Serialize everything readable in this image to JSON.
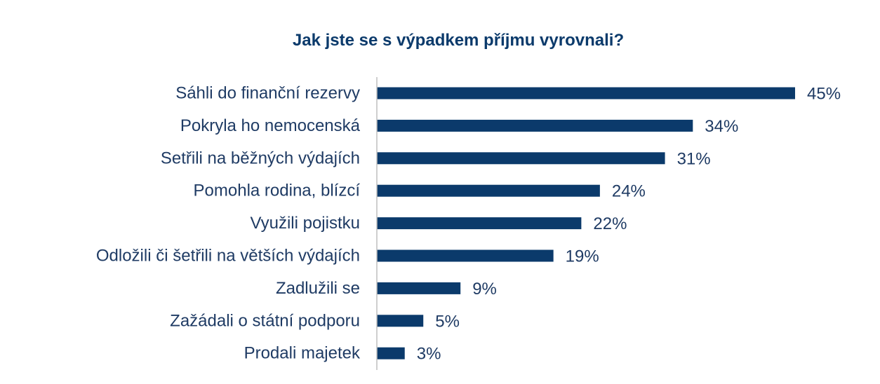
{
  "chart_data": {
    "type": "bar",
    "orientation": "horizontal",
    "title": "Jak jste se s výpadkem příjmu vyrovnali?",
    "categories": [
      "Sáhli do finanční rezervy",
      "Pokryla ho nemocenská",
      "Setřili na běžných výdajích",
      "Pomohla rodina, blízcí",
      "Využili pojistku",
      "Odložili či šetřili na větších výdajích",
      "Zadlužili se",
      "Zažádali o státní podporu",
      "Prodali majetek"
    ],
    "values": [
      45,
      34,
      31,
      24,
      22,
      19,
      9,
      5,
      3
    ],
    "value_labels": [
      "45%",
      "34%",
      "31%",
      "24%",
      "22%",
      "19%",
      "9%",
      "5%",
      "3%"
    ],
    "unit": "%",
    "xlim": [
      0,
      50
    ],
    "grid": false,
    "legend": "none",
    "bar_color": "#0b3a6b",
    "text_color": "#1f3b64",
    "axis_color": "#bfbfbf"
  }
}
